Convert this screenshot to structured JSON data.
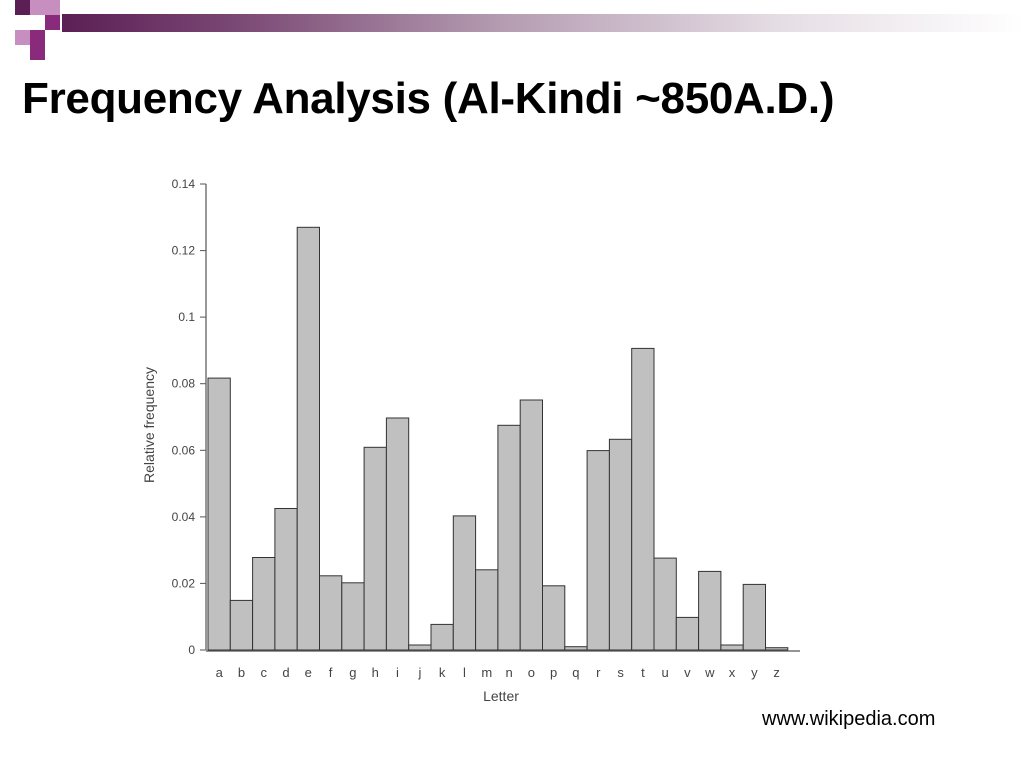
{
  "slide": {
    "title": "Frequency Analysis (Al-Kindi ~850A.D.)",
    "source": "www.wikipedia.com"
  },
  "colors": {
    "accent_dark": "#5b1f55",
    "accent_mid": "#8a2a7d",
    "accent_light": "#c78fc0",
    "bar_fill": "#c0c0c0",
    "bar_stroke": "#333333"
  },
  "chart_data": {
    "type": "bar",
    "title": "",
    "xlabel": "Letter",
    "ylabel": "Relative frequency",
    "ylim": [
      0,
      0.14
    ],
    "yticks": [
      0,
      0.02,
      0.04,
      0.06,
      0.08,
      0.1,
      0.12,
      0.14
    ],
    "ytick_labels": [
      "0",
      "0.02",
      "0.04",
      "0.06",
      "0.08",
      "0.1",
      "0.12",
      "0.14"
    ],
    "grid": false,
    "categories": [
      "a",
      "b",
      "c",
      "d",
      "e",
      "f",
      "g",
      "h",
      "i",
      "j",
      "k",
      "l",
      "m",
      "n",
      "o",
      "p",
      "q",
      "r",
      "s",
      "t",
      "u",
      "v",
      "w",
      "x",
      "y",
      "z"
    ],
    "values": [
      0.0817,
      0.0149,
      0.0278,
      0.0425,
      0.127,
      0.0223,
      0.0202,
      0.0609,
      0.0697,
      0.0015,
      0.0077,
      0.0403,
      0.0241,
      0.0675,
      0.0751,
      0.0193,
      0.001,
      0.0599,
      0.0633,
      0.0906,
      0.0276,
      0.0098,
      0.0236,
      0.0015,
      0.0197,
      0.0007
    ]
  }
}
